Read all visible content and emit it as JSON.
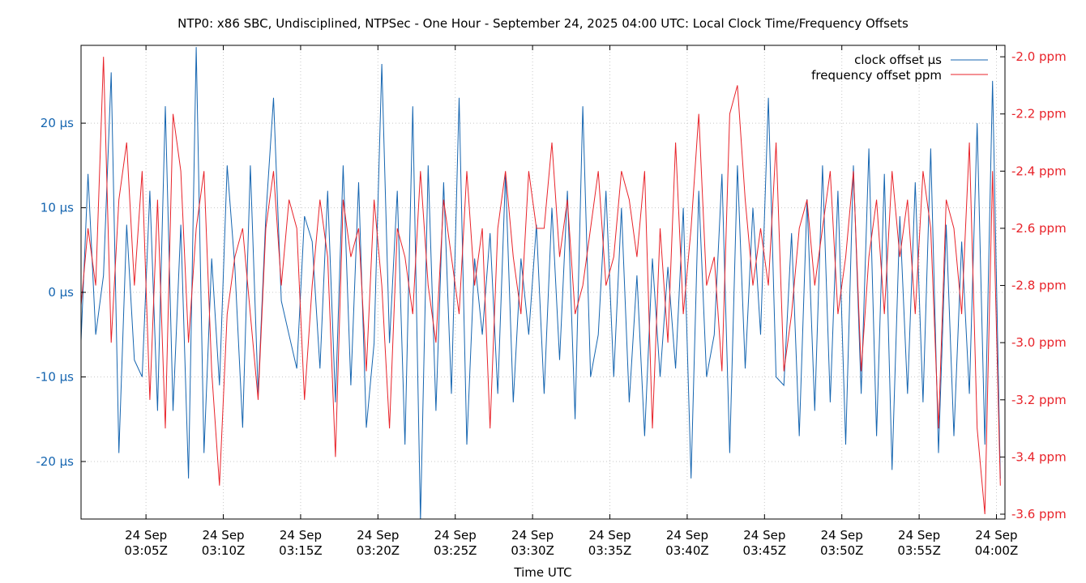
{
  "chart_data": {
    "type": "line",
    "title": "NTP0: x86 SBC, Undisciplined, NTPSec - One Hour - September 24, 2025 04:00 UTC: Local Clock Time/Frequency Offsets",
    "xlabel": "Time UTC",
    "ylabel_left": "",
    "ylabel_right": "",
    "grid": true,
    "legend_position": "top-right",
    "xlim": [
      "03:00:48",
      "04:00:33"
    ],
    "ylim_left": [
      -26.8,
      29.2
    ],
    "ylim_right": [
      -3.617,
      -1.96
    ],
    "colors": {
      "clock": "#1565b0",
      "frequency": "#e8232a",
      "axis_left": "#1565b0",
      "axis_right": "#e8232a",
      "grid": "#c8c8c8"
    },
    "xticks": [
      {
        "value": "03:05:00",
        "line1": "24 Sep",
        "line2": "03:05Z"
      },
      {
        "value": "03:10:00",
        "line1": "24 Sep",
        "line2": "03:10Z"
      },
      {
        "value": "03:15:00",
        "line1": "24 Sep",
        "line2": "03:15Z"
      },
      {
        "value": "03:20:00",
        "line1": "24 Sep",
        "line2": "03:20Z"
      },
      {
        "value": "03:25:00",
        "line1": "24 Sep",
        "line2": "03:25Z"
      },
      {
        "value": "03:30:00",
        "line1": "24 Sep",
        "line2": "03:30Z"
      },
      {
        "value": "03:35:00",
        "line1": "24 Sep",
        "line2": "03:35Z"
      },
      {
        "value": "03:40:00",
        "line1": "24 Sep",
        "line2": "03:40Z"
      },
      {
        "value": "03:45:00",
        "line1": "24 Sep",
        "line2": "03:45Z"
      },
      {
        "value": "03:50:00",
        "line1": "24 Sep",
        "line2": "03:50Z"
      },
      {
        "value": "03:55:00",
        "line1": "24 Sep",
        "line2": "03:55Z"
      },
      {
        "value": "04:00:00",
        "line1": "24 Sep",
        "line2": "04:00Z"
      }
    ],
    "yticks_left": [
      {
        "value": 20,
        "label": "20 µs"
      },
      {
        "value": 10,
        "label": "10 µs"
      },
      {
        "value": 0,
        "label": "0 µs"
      },
      {
        "value": -10,
        "label": "-10 µs"
      },
      {
        "value": -20,
        "label": "-20 µs"
      }
    ],
    "yticks_right": [
      {
        "value": -2.0,
        "label": "-2.0 ppm"
      },
      {
        "value": -2.2,
        "label": "-2.2 ppm"
      },
      {
        "value": -2.4,
        "label": "-2.4 ppm"
      },
      {
        "value": -2.6,
        "label": "-2.6 ppm"
      },
      {
        "value": -2.8,
        "label": "-2.8 ppm"
      },
      {
        "value": -3.0,
        "label": "-3.0 ppm"
      },
      {
        "value": -3.2,
        "label": "-3.2 ppm"
      },
      {
        "value": -3.4,
        "label": "-3.4 ppm"
      },
      {
        "value": -3.6,
        "label": "-3.6 ppm"
      }
    ],
    "x": [
      "03:00:45",
      "03:01:15",
      "03:01:45",
      "03:02:15",
      "03:02:45",
      "03:03:15",
      "03:03:45",
      "03:04:15",
      "03:04:45",
      "03:05:15",
      "03:05:45",
      "03:06:15",
      "03:06:45",
      "03:07:15",
      "03:07:45",
      "03:08:15",
      "03:08:45",
      "03:09:15",
      "03:09:45",
      "03:10:15",
      "03:10:45",
      "03:11:15",
      "03:11:45",
      "03:12:15",
      "03:12:45",
      "03:13:15",
      "03:13:45",
      "03:14:15",
      "03:14:45",
      "03:15:15",
      "03:15:45",
      "03:16:15",
      "03:16:45",
      "03:17:15",
      "03:17:45",
      "03:18:15",
      "03:18:45",
      "03:19:15",
      "03:19:45",
      "03:20:15",
      "03:20:45",
      "03:21:15",
      "03:21:45",
      "03:22:15",
      "03:22:45",
      "03:23:15",
      "03:23:45",
      "03:24:15",
      "03:24:45",
      "03:25:15",
      "03:25:45",
      "03:26:15",
      "03:26:45",
      "03:27:15",
      "03:27:45",
      "03:28:15",
      "03:28:45",
      "03:29:15",
      "03:29:45",
      "03:30:15",
      "03:30:45",
      "03:31:15",
      "03:31:45",
      "03:32:15",
      "03:32:45",
      "03:33:15",
      "03:33:45",
      "03:34:15",
      "03:34:45",
      "03:35:15",
      "03:35:45",
      "03:36:15",
      "03:36:45",
      "03:37:15",
      "03:37:45",
      "03:38:15",
      "03:38:45",
      "03:39:15",
      "03:39:45",
      "03:40:15",
      "03:40:45",
      "03:41:15",
      "03:41:45",
      "03:42:15",
      "03:42:45",
      "03:43:15",
      "03:43:45",
      "03:44:15",
      "03:44:45",
      "03:45:15",
      "03:45:45",
      "03:46:15",
      "03:46:45",
      "03:47:15",
      "03:47:45",
      "03:48:15",
      "03:48:45",
      "03:49:15",
      "03:49:45",
      "03:50:15",
      "03:50:45",
      "03:51:15",
      "03:51:45",
      "03:52:15",
      "03:52:45",
      "03:53:15",
      "03:53:45",
      "03:54:15",
      "03:54:45",
      "03:55:15",
      "03:55:45",
      "03:56:15",
      "03:56:45",
      "03:57:15",
      "03:57:45",
      "03:58:15",
      "03:58:45",
      "03:59:15",
      "03:59:45",
      "04:00:15"
    ],
    "series": [
      {
        "name": "clock offset µs",
        "axis": "left",
        "values": [
          -8,
          14,
          -5,
          2,
          26,
          -19,
          8,
          -8,
          -10,
          12,
          -14,
          22,
          -14,
          8,
          -22,
          29,
          -19,
          4,
          -11,
          15,
          3,
          -16,
          15,
          -12,
          9,
          23,
          -1,
          -5,
          -9,
          9,
          6,
          -9,
          12,
          -13,
          15,
          -11,
          13,
          -16,
          -6,
          27,
          -6,
          12,
          -18,
          22,
          -27,
          15,
          -14,
          13,
          -12,
          23,
          -18,
          4,
          -5,
          7,
          -12,
          14,
          -13,
          4,
          -5,
          8,
          -12,
          10,
          -8,
          12,
          -15,
          22,
          -10,
          -5,
          12,
          -10,
          10,
          -13,
          2,
          -17,
          4,
          -10,
          3,
          -9,
          10,
          -22,
          12,
          -10,
          -5,
          14,
          -19,
          15,
          -9,
          10,
          -5,
          23,
          -10,
          -11,
          7,
          -17,
          11,
          -14,
          15,
          -13,
          12,
          -18,
          15,
          -12,
          17,
          -17,
          14,
          -21,
          9,
          -12,
          13,
          -13,
          17,
          -19,
          8,
          -17,
          6,
          -12,
          20,
          -18,
          25,
          -22
        ]
      },
      {
        "name": "frequency offset ppm",
        "axis": "right",
        "values": [
          -2.9,
          -2.6,
          -2.8,
          -2.0,
          -3.0,
          -2.5,
          -2.3,
          -2.8,
          -2.4,
          -3.2,
          -2.5,
          -3.3,
          -2.2,
          -2.4,
          -3.0,
          -2.6,
          -2.4,
          -3.1,
          -3.5,
          -2.9,
          -2.7,
          -2.6,
          -2.9,
          -3.2,
          -2.6,
          -2.4,
          -2.8,
          -2.5,
          -2.6,
          -3.2,
          -2.8,
          -2.5,
          -2.7,
          -3.4,
          -2.5,
          -2.7,
          -2.6,
          -3.1,
          -2.5,
          -2.8,
          -3.3,
          -2.6,
          -2.7,
          -2.9,
          -2.4,
          -2.8,
          -3.0,
          -2.5,
          -2.7,
          -2.9,
          -2.4,
          -2.8,
          -2.6,
          -3.3,
          -2.6,
          -2.4,
          -2.7,
          -2.9,
          -2.4,
          -2.6,
          -2.6,
          -2.3,
          -2.7,
          -2.5,
          -2.9,
          -2.8,
          -2.6,
          -2.4,
          -2.8,
          -2.7,
          -2.4,
          -2.5,
          -2.7,
          -2.4,
          -3.3,
          -2.6,
          -3.0,
          -2.3,
          -2.9,
          -2.6,
          -2.2,
          -2.8,
          -2.7,
          -3.1,
          -2.2,
          -2.1,
          -2.5,
          -2.8,
          -2.6,
          -2.8,
          -2.3,
          -3.1,
          -2.9,
          -2.6,
          -2.5,
          -2.8,
          -2.6,
          -2.4,
          -2.9,
          -2.7,
          -2.4,
          -3.1,
          -2.7,
          -2.5,
          -2.9,
          -2.4,
          -2.7,
          -2.5,
          -2.9,
          -2.4,
          -2.6,
          -3.3,
          -2.5,
          -2.6,
          -2.9,
          -2.3,
          -3.3,
          -3.6,
          -2.4,
          -3.5
        ]
      }
    ]
  }
}
